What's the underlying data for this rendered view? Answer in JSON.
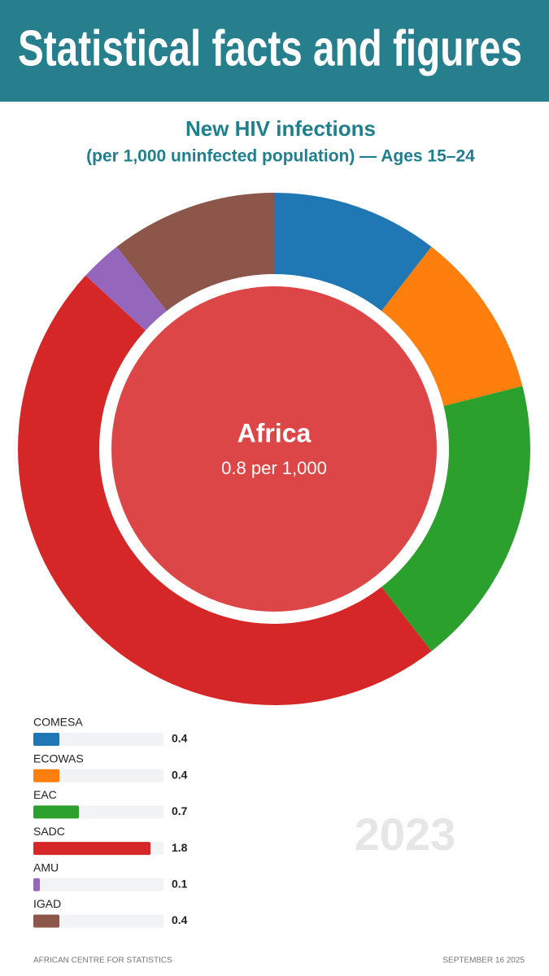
{
  "header_title": "Statistical facts and figures",
  "chart_data": {
    "type": "donut",
    "title": "New HIV infections",
    "subtitle": "(per 1,000 uninfected population) — Ages 15–24",
    "categories": [
      "COMESA",
      "ECOWAS",
      "EAC",
      "SADC",
      "AMU",
      "IGAD"
    ],
    "values": [
      0.4,
      0.4,
      0.7,
      1.8,
      0.1,
      0.4
    ],
    "colors": [
      "#1f77b4",
      "#ff7f0e",
      "#2ca02c",
      "#d62728",
      "#9467bd",
      "#8c564b"
    ],
    "xlim": [
      0,
      2
    ],
    "center": {
      "label": "Africa",
      "value": 0.8,
      "value_label": "0.8 per 1,000",
      "color": "#dc4646"
    }
  },
  "year": "2023",
  "footer": {
    "left": "AFRICAN CENTRE FOR STATISTICS",
    "right": "SEPTEMBER  16 2025"
  }
}
